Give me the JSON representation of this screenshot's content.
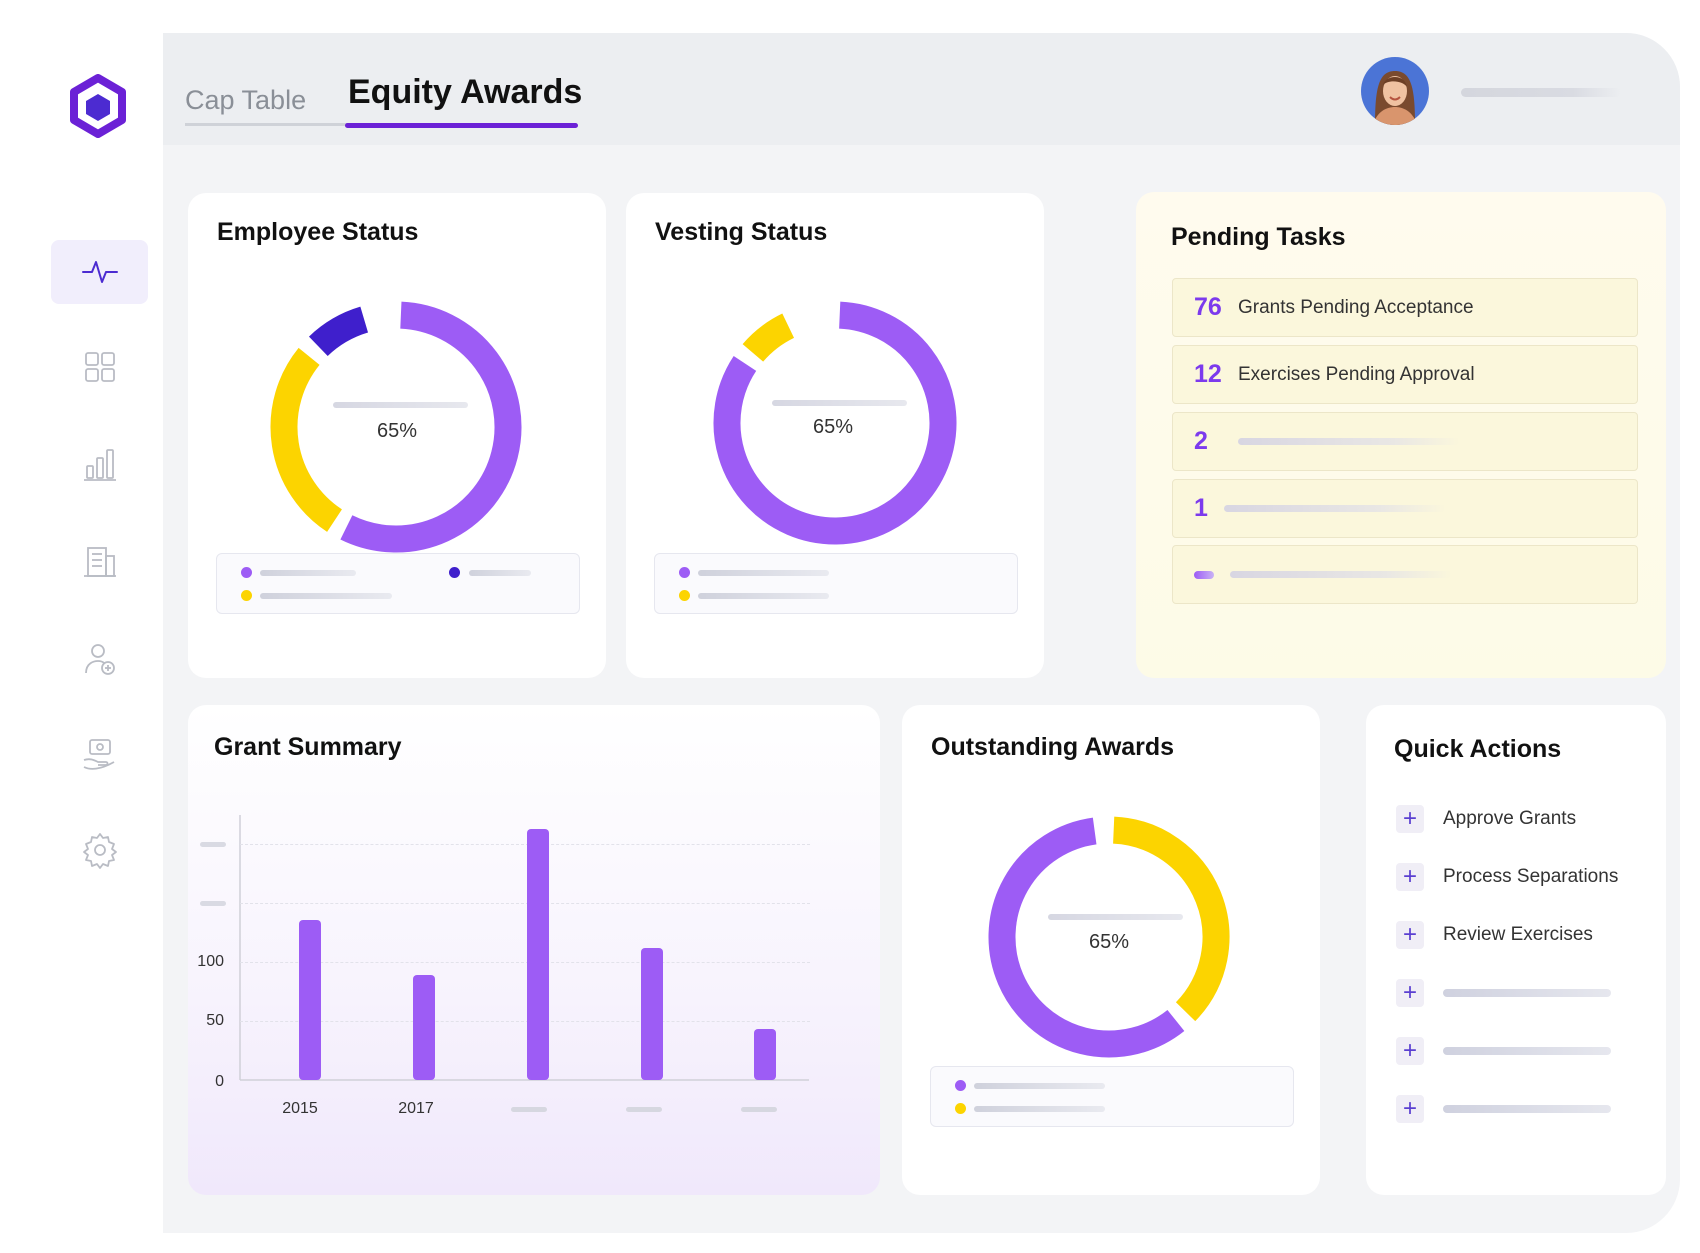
{
  "tabs": [
    {
      "label": "Cap Table",
      "active": false
    },
    {
      "label": "Equity Awards",
      "active": true
    }
  ],
  "nav": [
    "activity-icon",
    "grid-icon",
    "bar-chart-icon",
    "building-icon",
    "user-add-icon",
    "payment-icon",
    "gear-icon"
  ],
  "colors": {
    "accent": "#6b21d6",
    "purple": "#9d5cf5",
    "yellow": "#fcd400",
    "navy": "#3f1fcc"
  },
  "employee_status": {
    "title": "Employee Status",
    "center_label": "65%"
  },
  "vesting_status": {
    "title": "Vesting Status",
    "center_label": "65%"
  },
  "outstanding_awards": {
    "title": "Outstanding Awards",
    "center_label": "65%"
  },
  "pending_tasks": {
    "title": "Pending Tasks",
    "items": [
      {
        "count": "76",
        "label": "Grants Pending Acceptance"
      },
      {
        "count": "12",
        "label": "Exercises Pending Approval"
      },
      {
        "count": "2",
        "label": ""
      },
      {
        "count": "1",
        "label": ""
      },
      {
        "count": "",
        "label": ""
      }
    ]
  },
  "grant_summary": {
    "title": "Grant Summary"
  },
  "quick_actions": {
    "title": "Quick Actions",
    "items": [
      "Approve Grants",
      "Process Separations",
      "Review Exercises",
      "",
      "",
      ""
    ]
  },
  "chart_data": [
    {
      "type": "pie",
      "title": "Employee Status",
      "slices": [
        {
          "color": "#9d5cf5",
          "value": 58
        },
        {
          "color": "#fcd400",
          "value": 28
        },
        {
          "color": "#3f1fcc",
          "value": 9
        }
      ],
      "center_label": "65%"
    },
    {
      "type": "pie",
      "title": "Vesting Status",
      "slices": [
        {
          "color": "#9d5cf5",
          "value": 85
        },
        {
          "color": "#fcd400",
          "value": 8
        }
      ],
      "center_label": "65%"
    },
    {
      "type": "pie",
      "title": "Outstanding Awards",
      "slices": [
        {
          "color": "#fcd400",
          "value": 38
        },
        {
          "color": "#9d5cf5",
          "value": 60
        }
      ],
      "center_label": "65%"
    },
    {
      "type": "bar",
      "title": "Grant Summary",
      "categories": [
        "2015",
        "",
        "2017",
        "",
        "",
        ""
      ],
      "values": [
        140,
        0,
        92,
        220,
        116,
        45
      ],
      "y_ticks": [
        "0",
        "50",
        "100"
      ],
      "ylim": [
        0,
        225
      ]
    }
  ]
}
